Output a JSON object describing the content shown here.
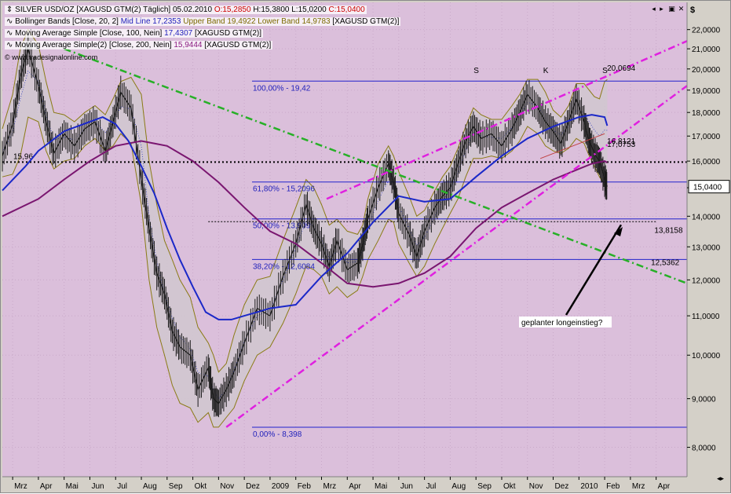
{
  "chart_header": {
    "symbol": "SILVER USD/OZ [XAGUSD GTM(2)",
    "interval": "Täglich]",
    "date": "05.02.2010",
    "open": "O:15,2850",
    "high": "H:15,3800",
    "low": "L:15,0200",
    "close": "C:15,0400",
    "indicator_bb": "Bollinger Bands [Close, 20, 2]",
    "indicator_bb_mid": "Mid Line 17,2353",
    "indicator_bb_upper": "Upper Band 19,4922",
    "indicator_bb_lower": "Lower Band 14,9783",
    "indicator_bb_symbol": "[XAGUSD GTM(2)]",
    "indicator_ma100": "Moving Average Simple [Close, 100, Nein]",
    "indicator_ma100_value": "17,4307",
    "indicator_ma100_symbol": "[XAGUSD GTM(2)]",
    "indicator_ma200": "Moving Average Simple(2) [Close, 200, Nein]",
    "indicator_ma200_value": "15,9444",
    "indicator_ma200_symbol": "[XAGUSD GTM(2)]",
    "watermark": "© www.tradesignalonline.com",
    "currency": "$"
  },
  "colors": {
    "plot_bg": "#dbbfdb",
    "bb_fill": "#d0c7cf",
    "bb_band": "#8a7a14",
    "ma100": "#1b28c8",
    "ma200": "#7a1670",
    "fib": "#2222cc",
    "trend_magenta": "#e020e0",
    "trend_green": "#27b027",
    "text_red": "#cc0000",
    "text_blue": "#2222bb",
    "text_olive": "#7b6a00",
    "text_purple": "#8a1a80"
  },
  "chart_data": {
    "type": "line",
    "y_axis_ticks": [
      "22,0000",
      "21,0000",
      "20,0000",
      "19,0000",
      "18,0000",
      "17,0000",
      "16,0000",
      "15,0000",
      "14,0000",
      "13,0000",
      "12,0000",
      "11,0000",
      "10,0000",
      "9,0000",
      "8,0000"
    ],
    "y_tick_values": [
      22,
      21,
      20,
      19,
      18,
      17,
      16,
      15,
      14,
      13,
      12,
      11,
      10,
      9,
      8
    ],
    "y_scale": "log",
    "x_axis_labels": [
      "Mrz",
      "Apr",
      "Mai",
      "Jun",
      "Jul",
      "Aug",
      "Sep",
      "Okt",
      "Nov",
      "Dez",
      "2009",
      "Feb",
      "Mrz",
      "Apr",
      "Mai",
      "Jun",
      "Jul",
      "Aug",
      "Sep",
      "Okt",
      "Nov",
      "Dez",
      "2010",
      "Feb",
      "Mrz",
      "Apr"
    ],
    "x_month_index": [
      0,
      1,
      2,
      3,
      4,
      5,
      6,
      7,
      8,
      9,
      10,
      11,
      12,
      13,
      14,
      15,
      16,
      17,
      18,
      19,
      20,
      21,
      22,
      23,
      24,
      25
    ],
    "x_range": [
      -0.4,
      26.2
    ],
    "ylim": [
      7.45,
      23.5
    ],
    "price": {
      "name": "SILVER USD/OZ",
      "x": [
        -0.4,
        0.0,
        0.3,
        0.6,
        1.0,
        1.3,
        1.6,
        2.0,
        2.4,
        2.8,
        3.2,
        3.6,
        3.9,
        4.2,
        4.6,
        5.0,
        5.3,
        5.6,
        5.9,
        6.2,
        6.5,
        6.9,
        7.2,
        7.6,
        7.8,
        8.0,
        8.3,
        8.6,
        9.0,
        9.5,
        10.0,
        10.5,
        11.0,
        11.4,
        11.7,
        12.0,
        12.3,
        12.6,
        13.0,
        13.4,
        13.6,
        13.8,
        14.2,
        14.6,
        14.8,
        15.0,
        15.4,
        15.7,
        16.0,
        16.4,
        16.7,
        17.0,
        17.3,
        17.6,
        17.9,
        18.2,
        18.6,
        19.0,
        19.4,
        19.7,
        20.0,
        20.4,
        20.7,
        21.0,
        21.3,
        21.6,
        21.9,
        22.2,
        22.4,
        22.6,
        22.8,
        23.0,
        23.1
      ],
      "close": [
        16.2,
        17.5,
        19.6,
        21.0,
        19.2,
        17.6,
        16.3,
        17.1,
        16.6,
        17.3,
        17.6,
        16.4,
        17.6,
        18.9,
        18.2,
        15.3,
        13.6,
        12.2,
        11.6,
        10.6,
        10.2,
        10.0,
        9.2,
        9.7,
        9.0,
        8.9,
        9.2,
        9.6,
        10.3,
        11.2,
        11.0,
        12.1,
        13.1,
        14.4,
        13.6,
        13.1,
        12.4,
        13.2,
        12.3,
        12.5,
        13.1,
        13.9,
        15.0,
        15.9,
        15.2,
        14.1,
        13.4,
        12.7,
        13.5,
        14.3,
        14.7,
        15.0,
        15.9,
        16.8,
        17.4,
        16.9,
        17.1,
        16.6,
        17.3,
        18.0,
        18.8,
        18.2,
        17.6,
        17.2,
        16.7,
        17.6,
        18.6,
        17.6,
        16.8,
        16.3,
        16.0,
        15.3,
        15.04
      ]
    },
    "bollinger": {
      "name": "Bollinger Bands",
      "x": [
        -0.4,
        0.0,
        0.3,
        0.6,
        1.0,
        1.3,
        1.6,
        2.0,
        2.4,
        2.8,
        3.2,
        3.6,
        3.9,
        4.2,
        4.6,
        5.0,
        5.3,
        5.6,
        5.9,
        6.2,
        6.5,
        6.9,
        7.2,
        7.6,
        7.8,
        8.0,
        8.3,
        8.6,
        9.0,
        9.5,
        10.0,
        10.5,
        11.0,
        11.4,
        11.7,
        12.0,
        12.3,
        12.6,
        13.0,
        13.4,
        13.6,
        13.8,
        14.2,
        14.6,
        14.8,
        15.0,
        15.4,
        15.7,
        16.0,
        16.4,
        16.7,
        17.0,
        17.3,
        17.6,
        17.9,
        18.2,
        18.6,
        19.0,
        19.4,
        19.7,
        20.0,
        20.4,
        20.7,
        21.0,
        21.3,
        21.6,
        21.9,
        22.2,
        22.4,
        22.6,
        22.8,
        23.0,
        23.1
      ],
      "upper": [
        17.3,
        18.8,
        21.0,
        22.0,
        21.2,
        19.4,
        18.0,
        17.9,
        17.6,
        18.0,
        18.3,
        17.9,
        18.6,
        19.4,
        19.6,
        18.8,
        16.0,
        14.4,
        13.2,
        12.6,
        12.0,
        11.5,
        10.7,
        10.3,
        10.0,
        9.6,
        9.8,
        10.5,
        11.3,
        12.0,
        12.1,
        13.2,
        14.3,
        15.3,
        15.0,
        14.4,
        13.7,
        13.9,
        13.5,
        13.4,
        13.7,
        14.6,
        15.9,
        16.6,
        16.2,
        15.6,
        14.7,
        14.0,
        14.2,
        14.9,
        15.4,
        15.8,
        16.5,
        17.4,
        18.2,
        17.9,
        17.7,
        17.7,
        18.3,
        18.8,
        19.5,
        19.5,
        18.9,
        18.1,
        17.8,
        18.3,
        19.3,
        19.3,
        19.0,
        18.7,
        18.6,
        19.4,
        19.49
      ]
    },
    "bollinger_lower": {
      "lower": [
        15.4,
        15.5,
        16.2,
        17.8,
        17.6,
        16.4,
        15.7,
        16.0,
        16.1,
        16.6,
        16.9,
        16.4,
        16.6,
        17.1,
        16.7,
        14.4,
        12.0,
        10.7,
        10.0,
        9.3,
        8.9,
        8.8,
        8.5,
        8.7,
        8.4,
        8.4,
        8.6,
        8.8,
        9.4,
        10.0,
        10.2,
        10.8,
        11.6,
        12.4,
        12.3,
        12.1,
        11.6,
        11.8,
        11.5,
        11.7,
        12.1,
        12.6,
        13.2,
        13.9,
        13.8,
        13.1,
        12.5,
        12.1,
        12.4,
        13.1,
        13.6,
        14.1,
        14.6,
        15.4,
        16.1,
        16.1,
        16.2,
        16.1,
        16.4,
        16.8,
        17.4,
        17.1,
        16.6,
        16.4,
        16.3,
        16.5,
        16.9,
        16.7,
        16.2,
        15.8,
        15.4,
        15.1,
        14.98
      ]
    },
    "ma100": {
      "name": "Moving Average Simple 100",
      "x": [
        -0.4,
        0.5,
        1.0,
        2.0,
        3.0,
        3.5,
        4.0,
        4.5,
        5.0,
        5.5,
        6.0,
        6.5,
        7.0,
        7.5,
        8.0,
        8.5,
        9.0,
        9.5,
        10.0,
        11.0,
        12.0,
        13.0,
        14.0,
        15.0,
        16.0,
        17.0,
        18.0,
        19.0,
        20.0,
        21.0,
        22.0,
        22.5,
        23.0,
        23.1
      ],
      "values": [
        14.9,
        15.8,
        16.4,
        17.2,
        17.6,
        17.8,
        17.5,
        16.8,
        15.8,
        14.8,
        13.6,
        12.6,
        11.8,
        11.1,
        10.9,
        10.9,
        11.0,
        11.1,
        11.2,
        11.3,
        12.1,
        12.8,
        13.8,
        14.7,
        14.5,
        14.6,
        15.4,
        16.2,
        16.9,
        17.4,
        17.8,
        17.9,
        17.8,
        17.43
      ]
    },
    "ma200": {
      "name": "Moving Average Simple 200",
      "x": [
        -0.4,
        1.0,
        2.0,
        3.0,
        4.0,
        5.0,
        5.5,
        6.0,
        7.0,
        8.0,
        9.0,
        10.0,
        11.0,
        12.0,
        13.0,
        14.0,
        15.0,
        16.0,
        17.0,
        18.0,
        19.0,
        20.0,
        21.0,
        22.0,
        22.5,
        23.0,
        23.1
      ],
      "values": [
        14.0,
        14.6,
        15.3,
        16.0,
        16.6,
        16.8,
        16.7,
        16.6,
        16.0,
        15.2,
        14.3,
        13.5,
        13.1,
        12.5,
        11.9,
        11.8,
        11.9,
        12.2,
        12.7,
        13.6,
        14.3,
        14.8,
        15.3,
        15.7,
        15.9,
        16.0,
        15.94
      ]
    },
    "fibonacci": [
      {
        "label": "100,00% - 19,42",
        "value": 19.42
      },
      {
        "label": "61,80% - 15,2096",
        "value": 15.2096
      },
      {
        "label": "50,00% - 13,909",
        "value": 13.909
      },
      {
        "label": "38,20% - 12,6084",
        "value": 12.6084
      },
      {
        "label": "0,00% - 8,398",
        "value": 8.398
      }
    ],
    "hlines": [
      {
        "value": 15.96,
        "label": "15,96"
      },
      {
        "value": 13.8158,
        "label": "13,8158"
      }
    ],
    "annotations": {
      "shoulder_left": "S",
      "head": "K",
      "shoulder_right": "S",
      "arrow_text": "geplanter longeinstieg?",
      "price_label_right": "15,0400",
      "label_20_0694": "20,0694",
      "label_16_8121": "16,8121",
      "label_17_0753": "17,0753",
      "label_12_5362": "12,5362"
    },
    "trend_lines": {
      "channel_lower": {
        "x": [
          8.3,
          26.2
        ],
        "values": [
          8.4,
          19.2
        ]
      },
      "channel_upper": {
        "x": [
          12.2,
          26.2
        ],
        "values": [
          14.6,
          21.4
        ]
      },
      "downtrend": {
        "x": [
          2.0,
          26.2
        ],
        "values": [
          21.0,
          11.9
        ]
      },
      "wedge": {
        "x": [
          20.5,
          23.0
        ],
        "values": [
          16.1,
          17.1
        ]
      }
    }
  }
}
